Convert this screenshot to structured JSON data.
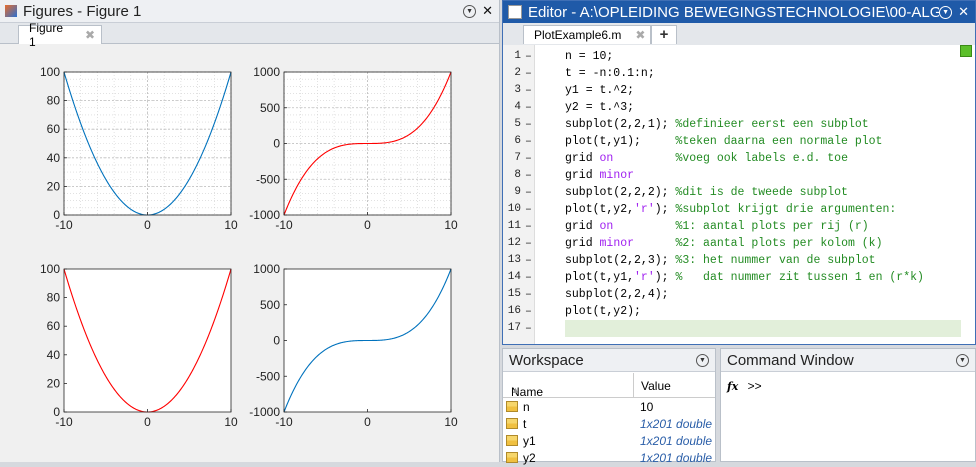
{
  "figures": {
    "title": "Figures - Figure 1",
    "tab_label": "Figure 1"
  },
  "editor": {
    "title": "Editor - A:\\OPLEIDING BEWEGINGSTECHNOLOGIE\\00-ALG",
    "tab_label": "PlotExample6.m",
    "add_tab_label": "+",
    "lines": [
      {
        "n": "1",
        "parts": [
          {
            "t": "n = 10;",
            "c": ""
          }
        ]
      },
      {
        "n": "2",
        "parts": [
          {
            "t": "t = -n:0.1:n;",
            "c": ""
          }
        ]
      },
      {
        "n": "3",
        "parts": [
          {
            "t": "y1 = t.^2;",
            "c": ""
          }
        ]
      },
      {
        "n": "4",
        "parts": [
          {
            "t": "y2 = t.^3;",
            "c": ""
          }
        ]
      },
      {
        "n": "5",
        "parts": [
          {
            "t": "subplot(2,2,1); ",
            "c": ""
          },
          {
            "t": "%definieer eerst een subplot",
            "c": "cmt"
          }
        ]
      },
      {
        "n": "6",
        "parts": [
          {
            "t": "plot(t,y1);     ",
            "c": ""
          },
          {
            "t": "%teken daarna een normale plot",
            "c": "cmt"
          }
        ]
      },
      {
        "n": "7",
        "parts": [
          {
            "t": "grid ",
            "c": ""
          },
          {
            "t": "on",
            "c": "kw"
          },
          {
            "t": "         ",
            "c": ""
          },
          {
            "t": "%voeg ook labels e.d. toe",
            "c": "cmt"
          }
        ]
      },
      {
        "n": "8",
        "parts": [
          {
            "t": "grid ",
            "c": ""
          },
          {
            "t": "minor",
            "c": "kw"
          }
        ]
      },
      {
        "n": "9",
        "parts": [
          {
            "t": "subplot(2,2,2); ",
            "c": ""
          },
          {
            "t": "%dit is de tweede subplot",
            "c": "cmt"
          }
        ]
      },
      {
        "n": "10",
        "parts": [
          {
            "t": "plot(t,y2,",
            "c": ""
          },
          {
            "t": "'r'",
            "c": "str"
          },
          {
            "t": "); ",
            "c": ""
          },
          {
            "t": "%subplot krijgt drie argumenten:",
            "c": "cmt"
          }
        ]
      },
      {
        "n": "11",
        "parts": [
          {
            "t": "grid ",
            "c": ""
          },
          {
            "t": "on",
            "c": "kw"
          },
          {
            "t": "         ",
            "c": ""
          },
          {
            "t": "%1: aantal plots per rij (r)",
            "c": "cmt"
          }
        ]
      },
      {
        "n": "12",
        "parts": [
          {
            "t": "grid ",
            "c": ""
          },
          {
            "t": "minor",
            "c": "kw"
          },
          {
            "t": "      ",
            "c": ""
          },
          {
            "t": "%2: aantal plots per kolom (k)",
            "c": "cmt"
          }
        ]
      },
      {
        "n": "13",
        "parts": [
          {
            "t": "subplot(2,2,3); ",
            "c": ""
          },
          {
            "t": "%3: het nummer van de subplot",
            "c": "cmt"
          }
        ]
      },
      {
        "n": "14",
        "parts": [
          {
            "t": "plot(t,y1,",
            "c": ""
          },
          {
            "t": "'r'",
            "c": "str"
          },
          {
            "t": "); ",
            "c": ""
          },
          {
            "t": "%   dat nummer zit tussen 1 en (r*k)",
            "c": "cmt"
          }
        ]
      },
      {
        "n": "15",
        "parts": [
          {
            "t": "subplot(2,2,4);",
            "c": ""
          }
        ]
      },
      {
        "n": "16",
        "parts": [
          {
            "t": "plot(t,y2);",
            "c": ""
          }
        ]
      },
      {
        "n": "17",
        "parts": [
          {
            "t": "",
            "c": ""
          }
        ]
      }
    ]
  },
  "workspace": {
    "title": "Workspace",
    "col_name": "Name",
    "col_value": "Value",
    "sort_indicator": "▲",
    "rows": [
      {
        "name": "n",
        "value": "10",
        "italic": false
      },
      {
        "name": "t",
        "value": "1x201 double",
        "italic": true
      },
      {
        "name": "y1",
        "value": "1x201 double",
        "italic": true
      },
      {
        "name": "y2",
        "value": "1x201 double",
        "italic": true
      }
    ]
  },
  "command_window": {
    "title": "Command Window",
    "fx_label": "fx",
    "prompt": ">>"
  },
  "chart_data": [
    {
      "type": "line",
      "func": "t^2",
      "x_range": [
        -10,
        10
      ],
      "ylim": [
        0,
        100
      ],
      "color": "#0072bd",
      "xticks": [
        "-10",
        "0",
        "10"
      ],
      "yticks": [
        "0",
        "20",
        "40",
        "60",
        "80",
        "100"
      ],
      "grid": "minor",
      "title": "",
      "xlabel": "",
      "ylabel": ""
    },
    {
      "type": "line",
      "func": "t^3",
      "x_range": [
        -10,
        10
      ],
      "ylim": [
        -1000,
        1000
      ],
      "color": "#ff0000",
      "xticks": [
        "-10",
        "0",
        "10"
      ],
      "yticks": [
        "-1000",
        "-500",
        "0",
        "500",
        "1000"
      ],
      "grid": "minor",
      "title": "",
      "xlabel": "",
      "ylabel": ""
    },
    {
      "type": "line",
      "func": "t^2",
      "x_range": [
        -10,
        10
      ],
      "ylim": [
        0,
        100
      ],
      "color": "#ff0000",
      "xticks": [
        "-10",
        "0",
        "10"
      ],
      "yticks": [
        "0",
        "20",
        "40",
        "60",
        "80",
        "100"
      ],
      "grid": "none",
      "title": "",
      "xlabel": "",
      "ylabel": ""
    },
    {
      "type": "line",
      "func": "t^3",
      "x_range": [
        -10,
        10
      ],
      "ylim": [
        -1000,
        1000
      ],
      "color": "#0072bd",
      "xticks": [
        "-10",
        "0",
        "10"
      ],
      "yticks": [
        "-1000",
        "-500",
        "0",
        "500",
        "1000"
      ],
      "grid": "none",
      "title": "",
      "xlabel": "",
      "ylabel": ""
    }
  ]
}
